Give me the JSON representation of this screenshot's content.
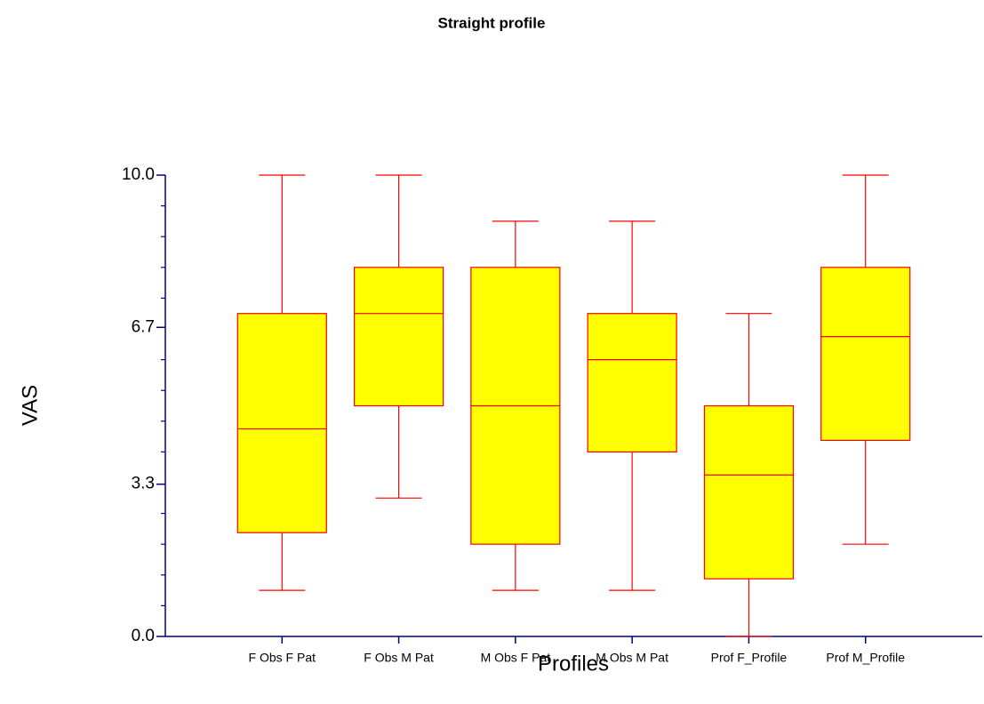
{
  "chart_data": {
    "type": "box",
    "title": "Straight profile",
    "x_label": "Profiles",
    "y_label": "VAS",
    "categories": [
      "F Obs F Pat",
      "F Obs M Pat",
      "M Obs F Pat",
      "M Obs M Pat",
      "Prof F_Profile",
      "Prof M_Profile"
    ],
    "boxes": [
      {
        "min": 1,
        "q1": 2.25,
        "median": 4.5,
        "q3": 7,
        "max": 10
      },
      {
        "min": 3,
        "q1": 5,
        "median": 7,
        "q3": 8,
        "max": 10
      },
      {
        "min": 1,
        "q1": 2,
        "median": 5,
        "q3": 8,
        "max": 9
      },
      {
        "min": 1,
        "q1": 4,
        "median": 6,
        "q3": 7,
        "max": 9
      },
      {
        "min": 0,
        "q1": 1.25,
        "median": 3.5,
        "q3": 5,
        "max": 7
      },
      {
        "min": 2,
        "q1": 4.25,
        "median": 6.5,
        "q3": 8,
        "max": 10
      }
    ],
    "box_color": "#ffff00",
    "line_color": "#ff0000",
    "axis_color": "#000080",
    "ylim": [
      0,
      10
    ],
    "yticks": [
      {
        "value": 0,
        "label": "0.0"
      },
      3.3,
      6.7,
      {
        "value": 10,
        "label": "10.0"
      }
    ],
    "yminorticks": [
      0.667,
      1.333,
      2,
      2.667,
      4,
      4.667,
      5.333,
      6,
      7.333,
      8,
      8.667,
      9.333
    ]
  }
}
